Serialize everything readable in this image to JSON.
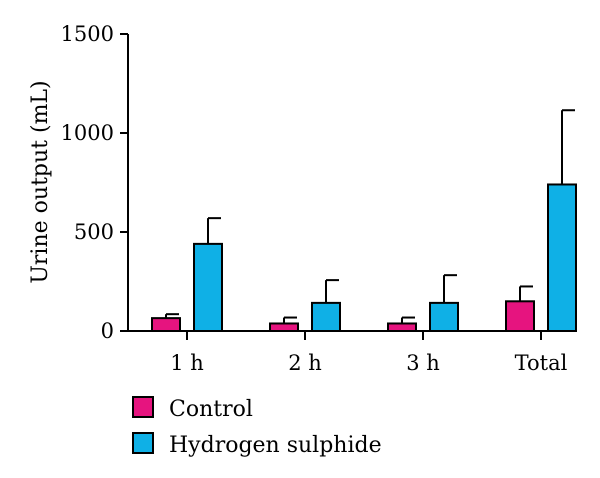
{
  "chart_data": {
    "type": "bar",
    "title": "",
    "xlabel": "",
    "ylabel": "Urine output (mL)",
    "ylim": [
      0,
      1500
    ],
    "yticks": [
      0,
      500,
      1000,
      1500
    ],
    "grid": false,
    "legend_position": "bottom-left",
    "categories": [
      "1 h",
      "2 h",
      "3 h",
      "Total"
    ],
    "series": [
      {
        "name": "Control",
        "color": "#e6147f",
        "values": [
          65,
          38,
          38,
          150
        ],
        "errors": [
          20,
          30,
          30,
          75
        ]
      },
      {
        "name": "Hydrogen sulphide",
        "color": "#0fb0e6",
        "values": [
          440,
          142,
          142,
          740
        ],
        "errors": [
          130,
          115,
          140,
          375
        ]
      }
    ]
  }
}
